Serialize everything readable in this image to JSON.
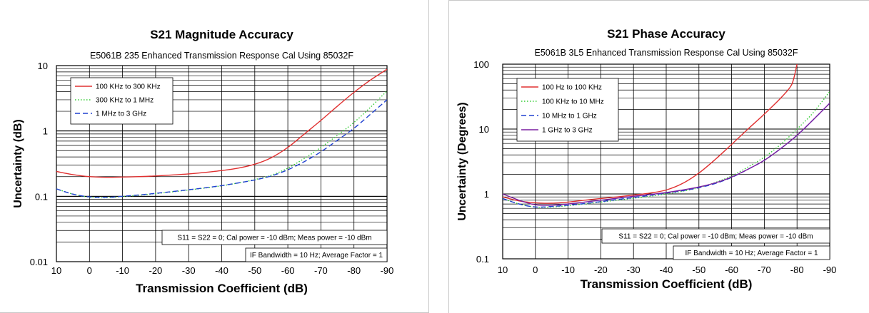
{
  "chart_data": [
    {
      "type": "line",
      "title": "S21 Magnitude Accuracy",
      "subtitle": "E5061B 235 Enhanced Transmission Response Cal Using 85032F",
      "xlabel": "Transmission Coefficient (dB)",
      "ylabel": "Uncertainty (dB)",
      "xlim": [
        10,
        -90
      ],
      "ylim": [
        0.01,
        10
      ],
      "y_scale": "log",
      "grid": true,
      "legend_position": "top-left",
      "x_tick_labels": [
        "10",
        "0",
        "-10",
        "-20",
        "-30",
        "-40",
        "-50",
        "-60",
        "-70",
        "-80",
        "-90"
      ],
      "y_tick_labels": [
        "0.01",
        "0.1",
        "1",
        "10"
      ],
      "notes": [
        "S11 = S22 = 0; Cal power = -10 dBm; Meas power = -10 dBm",
        "IF Bandwidth = 10 Hz; Average Factor = 1"
      ],
      "series": [
        {
          "name": "100 KHz to 300 KHz",
          "color": "#e03030",
          "dash": "solid",
          "x": [
            10,
            5,
            0,
            -5,
            -10,
            -15,
            -20,
            -25,
            -30,
            -35,
            -40,
            -45,
            -50,
            -55,
            -60,
            -65,
            -70,
            -75,
            -80,
            -85,
            -90
          ],
          "y": [
            0.24,
            0.215,
            0.2,
            0.195,
            0.197,
            0.2,
            0.205,
            0.212,
            0.22,
            0.232,
            0.248,
            0.27,
            0.31,
            0.39,
            0.56,
            0.9,
            1.45,
            2.4,
            3.9,
            6.0,
            8.8
          ]
        },
        {
          "name": "300 KHz to 1 MHz",
          "color": "#33cc33",
          "dash": "dotted",
          "x": [
            10,
            5,
            0,
            -5,
            -10,
            -15,
            -20,
            -25,
            -30,
            -35,
            -40,
            -45,
            -50,
            -55,
            -60,
            -65,
            -70,
            -75,
            -80,
            -85,
            -90
          ],
          "y": [
            0.13,
            0.108,
            0.097,
            0.095,
            0.099,
            0.104,
            0.11,
            0.117,
            0.125,
            0.134,
            0.145,
            0.16,
            0.18,
            0.21,
            0.27,
            0.38,
            0.56,
            0.86,
            1.35,
            2.3,
            4.1
          ]
        },
        {
          "name": "1 MHz to 3 GHz",
          "color": "#2040d0",
          "dash": "dashed",
          "x": [
            10,
            5,
            0,
            -5,
            -10,
            -15,
            -20,
            -25,
            -30,
            -35,
            -40,
            -45,
            -50,
            -55,
            -60,
            -65,
            -70,
            -75,
            -80,
            -85,
            -90
          ],
          "y": [
            0.13,
            0.108,
            0.098,
            0.096,
            0.1,
            0.105,
            0.111,
            0.118,
            0.126,
            0.135,
            0.146,
            0.16,
            0.178,
            0.205,
            0.255,
            0.34,
            0.48,
            0.72,
            1.1,
            1.8,
            3.0
          ]
        }
      ]
    },
    {
      "type": "line",
      "title": "S21 Phase Accuracy",
      "subtitle": "E5061B 3L5 Enhanced Transmission Response Cal Using 85032F",
      "xlabel": "Transmission Coefficient (dB)",
      "ylabel": "Uncertainty (Degrees)",
      "xlim": [
        10,
        -90
      ],
      "ylim": [
        0.1,
        100
      ],
      "y_scale": "log",
      "grid": true,
      "legend_position": "top-left",
      "x_tick_labels": [
        "10",
        "0",
        "-10",
        "-20",
        "-30",
        "-40",
        "-50",
        "-60",
        "-70",
        "-80",
        "-90"
      ],
      "y_tick_labels": [
        "0.1",
        "1",
        "10",
        "100"
      ],
      "notes": [
        "S11 = S22 = 0; Cal power = -10 dBm; Meas power = -10 dBm",
        "IF Bandwidth = 10 Hz; Average Factor = 1"
      ],
      "series": [
        {
          "name": "100 Hz to 100 KHz",
          "color": "#e03030",
          "dash": "solid",
          "x": [
            10,
            5,
            0,
            -5,
            -10,
            -15,
            -20,
            -25,
            -30,
            -35,
            -40,
            -45,
            -50,
            -55,
            -60,
            -65,
            -70,
            -75,
            -78,
            -79,
            -80
          ],
          "y": [
            0.9,
            0.78,
            0.73,
            0.72,
            0.75,
            0.8,
            0.85,
            0.9,
            0.96,
            1.03,
            1.15,
            1.45,
            2.1,
            3.4,
            5.8,
            10,
            17,
            30,
            45,
            60,
            100
          ]
        },
        {
          "name": "100 KHz to 10 MHz",
          "color": "#33cc33",
          "dash": "dotted",
          "x": [
            10,
            5,
            0,
            -5,
            -10,
            -15,
            -20,
            -25,
            -30,
            -35,
            -40,
            -45,
            -50,
            -55,
            -60,
            -65,
            -70,
            -75,
            -80,
            -85,
            -90
          ],
          "y": [
            0.85,
            0.7,
            0.63,
            0.63,
            0.66,
            0.7,
            0.75,
            0.8,
            0.86,
            0.92,
            1.0,
            1.1,
            1.25,
            1.5,
            1.9,
            2.6,
            3.7,
            5.8,
            10,
            18,
            38
          ]
        },
        {
          "name": "10 MHz to 1 GHz",
          "color": "#2040d0",
          "dash": "dashed",
          "x": [
            10,
            5,
            0,
            -5,
            -10,
            -15,
            -20,
            -25,
            -30,
            -35,
            -40,
            -45,
            -50,
            -55,
            -60,
            -65,
            -70,
            -75,
            -80,
            -85,
            -90
          ],
          "y": [
            0.85,
            0.7,
            0.63,
            0.64,
            0.67,
            0.71,
            0.76,
            0.82,
            0.88,
            0.95,
            1.03,
            1.12,
            1.25,
            1.45,
            1.8,
            2.4,
            3.3,
            5.0,
            8.0,
            14,
            25
          ]
        },
        {
          "name": "1 GHz to 3 GHz",
          "color": "#7a1fa0",
          "dash": "solid",
          "x": [
            10,
            5,
            0,
            -5,
            -10,
            -15,
            -20,
            -25,
            -30,
            -35,
            -40,
            -45,
            -50,
            -55,
            -60,
            -65,
            -70,
            -75,
            -80,
            -85,
            -90
          ],
          "y": [
            1.0,
            0.8,
            0.68,
            0.67,
            0.7,
            0.75,
            0.8,
            0.86,
            0.92,
            0.98,
            1.05,
            1.15,
            1.28,
            1.48,
            1.82,
            2.4,
            3.3,
            5.0,
            8.0,
            14,
            25
          ]
        }
      ]
    }
  ]
}
